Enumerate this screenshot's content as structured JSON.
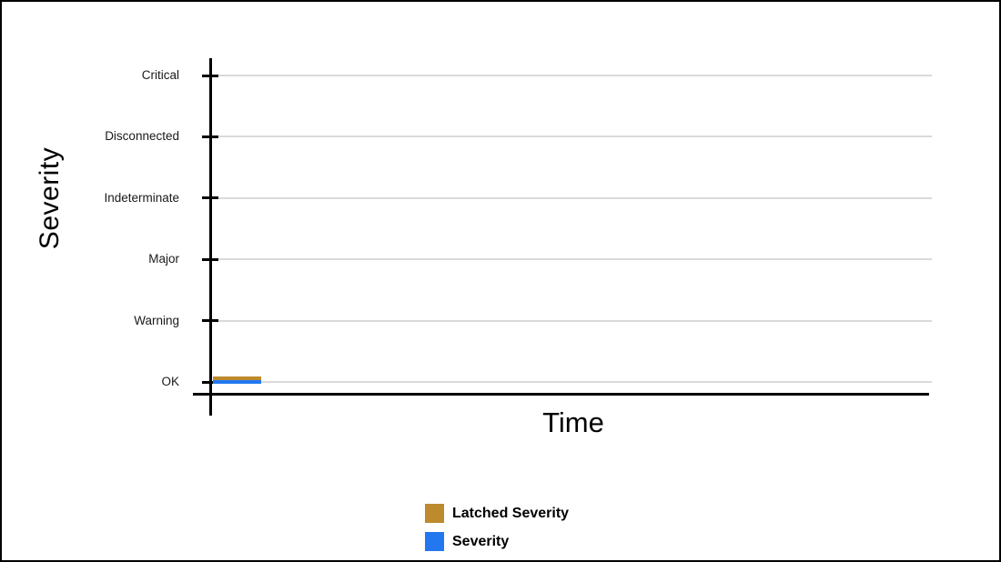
{
  "chart_data": {
    "type": "line",
    "title": "",
    "xlabel": "Time",
    "ylabel": "Severity",
    "y_categories": [
      "Critical",
      "Disconnected",
      "Indeterminate",
      "Major",
      "Warning",
      "OK"
    ],
    "x_tick_labels": [],
    "grid": "horizontal",
    "legend_position": "bottom-center",
    "series": [
      {
        "name": "Latched Severity",
        "color": "#BE8A2E",
        "value": "OK",
        "x_start_frac": 0.0,
        "x_end_frac": 0.067
      },
      {
        "name": "Severity",
        "color": "#2378F0",
        "value": "OK",
        "x_start_frac": 0.0,
        "x_end_frac": 0.067
      }
    ]
  },
  "colors": {
    "grid": "#dadada",
    "axis": "#000000",
    "text": "#1a1a1a",
    "background": "#ffffff",
    "frame_border": "#000000"
  }
}
